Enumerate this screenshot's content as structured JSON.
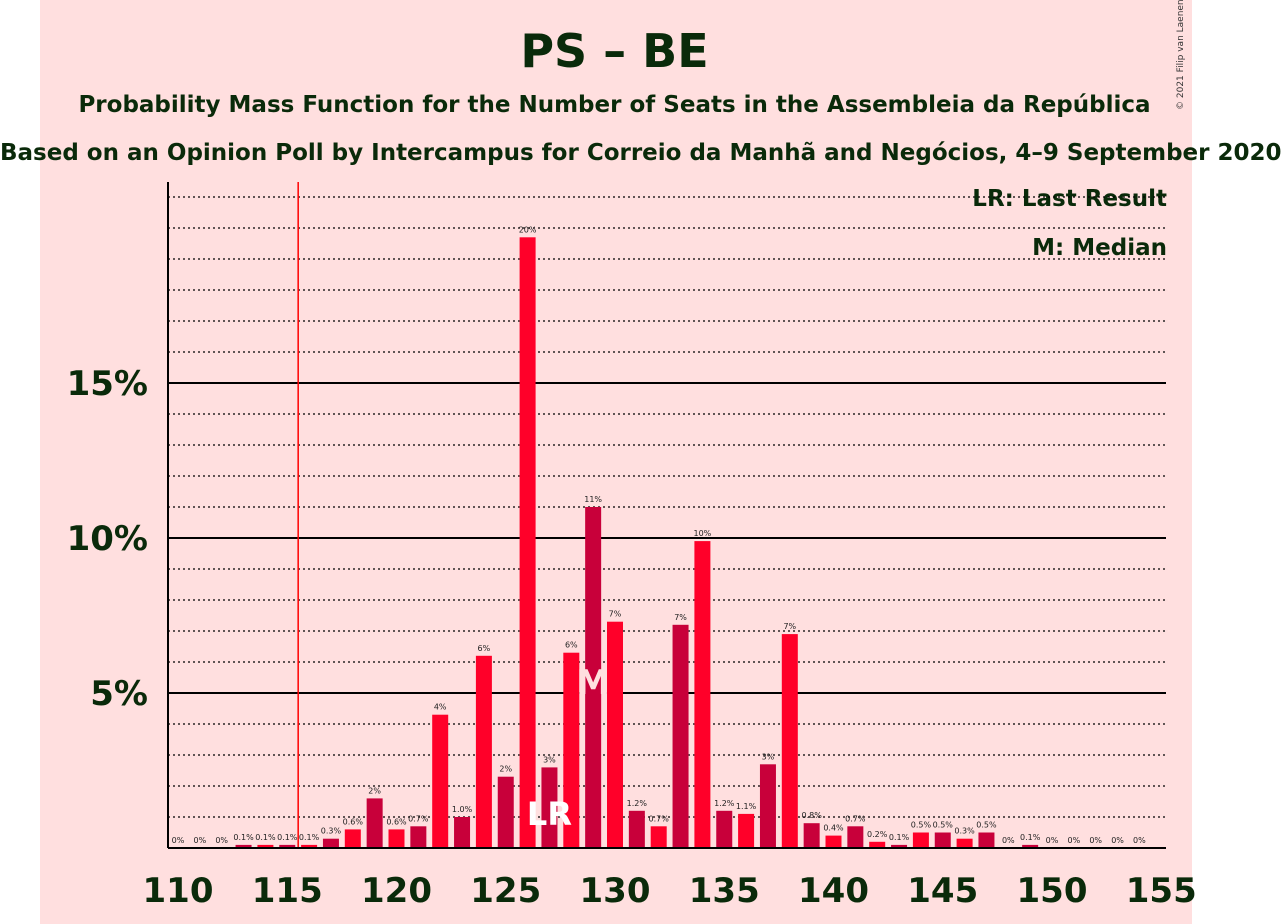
{
  "title": "PS – BE",
  "subtitle": "Probability Mass Function for the Number of Seats in the Assembleia da República",
  "source": "Based on an Opinion Poll by Intercampus for Correio da Manhã and Negócios, 4–9 September 2020",
  "legend": {
    "lr": "LR: Last Result",
    "median": "M: Median"
  },
  "copyright": "© 2021 Filip van Laenen",
  "colors": {
    "background": "#ffdfdf",
    "bar_dark": "#c8003a",
    "bar_light": "#ff0029",
    "last_result_line": "#ff0000",
    "text": "#0a2a0a"
  },
  "chart_data": {
    "type": "bar",
    "x": [
      110,
      111,
      112,
      113,
      114,
      115,
      116,
      117,
      118,
      119,
      120,
      121,
      122,
      123,
      124,
      125,
      126,
      127,
      128,
      129,
      130,
      131,
      132,
      133,
      134,
      135,
      136,
      137,
      138,
      139,
      140,
      141,
      142,
      143,
      144,
      145,
      146,
      147,
      148,
      149,
      150,
      151,
      152,
      153,
      154
    ],
    "values": [
      0,
      0,
      0,
      0.1,
      0.1,
      0.1,
      0.1,
      0.3,
      0.6,
      1.6,
      0.6,
      0.7,
      4.3,
      1.0,
      6.2,
      2.3,
      19.7,
      2.6,
      6.3,
      11.0,
      7.3,
      1.2,
      0.7,
      7.2,
      9.9,
      1.2,
      1.1,
      2.7,
      6.9,
      0.8,
      0.4,
      0.7,
      0.2,
      0.1,
      0.5,
      0.5,
      0.3,
      0.5,
      0,
      0.1,
      0,
      0,
      0,
      0,
      0
    ],
    "labels": [
      "0%",
      "0%",
      "0%",
      "0.1%",
      "0.1%",
      "0.1%",
      "0.1%",
      "0.3%",
      "0.6%",
      "2%",
      "0.6%",
      "0.7%",
      "4%",
      "1.0%",
      "6%",
      "2%",
      "20%",
      "3%",
      "6%",
      "11%",
      "7%",
      "1.2%",
      "0.7%",
      "7%",
      "10%",
      "1.2%",
      "1.1%",
      "3%",
      "7%",
      "0.8%",
      "0.4%",
      "0.7%",
      "0.2%",
      "0.1%",
      "0.5%",
      "0.5%",
      "0.3%",
      "0.5%",
      "0%",
      "0.1%",
      "0%",
      "0%",
      "0%",
      "0%",
      "0%"
    ],
    "x_ticks": [
      110,
      115,
      120,
      125,
      130,
      135,
      140,
      145,
      150,
      155
    ],
    "x_tick_labels": [
      "110",
      "115",
      "120",
      "125",
      "130",
      "135",
      "140",
      "145",
      "150",
      "155"
    ],
    "y_ticks": [
      5,
      10,
      15
    ],
    "y_tick_labels": [
      "5%",
      "10%",
      "15%"
    ],
    "ylim": [
      0,
      21.5
    ],
    "last_result": {
      "x": 115.5,
      "label": "LR",
      "bar_x": 127
    },
    "median": {
      "x": 129,
      "label": "M"
    }
  }
}
